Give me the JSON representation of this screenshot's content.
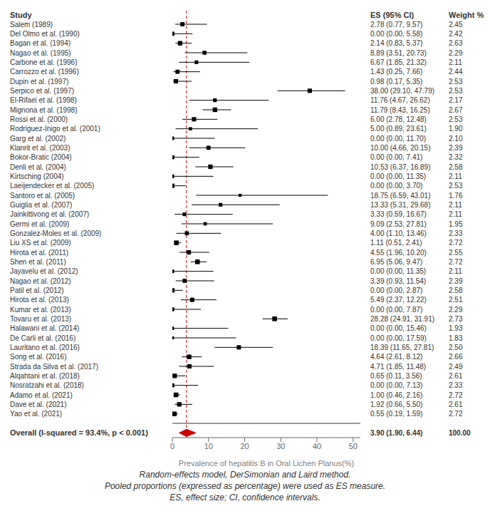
{
  "chart_data": {
    "type": "forest",
    "column_labels": [
      "Study",
      "ES (95% CI)",
      "Weight %"
    ],
    "categories": [
      "Salem (1989)",
      "Del Olmo et al. (1990)",
      "Bagan et al. (1994)",
      "Nagao et al. (1995)",
      "Carbone et al. (1996)",
      "Carrozzo et al. (1996)",
      "Dupin et al. (1997)",
      "Serpico et al. (1997)",
      "El-Rifaei et al. (1998)",
      "Mignona et al. (1998)",
      "Rossi et al. (2000)",
      "Rodriguez-Inigo et al. (2001)",
      "Garg et al. (2002)",
      "Klanrit et al. (2003)",
      "Bokor-Bratic (2004)",
      "Denli et al. (2004)",
      "Kirtsching (2004)",
      "Laeijendecker et al. (2005)",
      "Santoro et al. (2005)",
      "Guiglia et al. (2007)",
      "Jainkittivong et al. (2007)",
      "Germi et al. (2009)",
      "Gonzalez-Moles et al. (2009)",
      "Liu XS et al. (2009)",
      "Hirota et al. (2011)",
      "Shen et al. (2011)",
      "Jayavelu et al. (2012)",
      "Nagao et al. (2012)",
      "Patil et al. (2012)",
      "Hirota et al. (2013)",
      "Kumar et al. (2013)",
      "Tovaru et al. (2013)",
      "Halawani et al. (2014)",
      "De Carli et al. (2016)",
      "Lauritano et al. (2016)",
      "Song et al. (2016)",
      "Strada da Silva et al. (2017)",
      "Alqahtani et al. (2018)",
      "Nosratzahi et al. (2018)",
      "Adamo et al. (2021)",
      "Dave et al. (2021)",
      "Yao et al. (2021)"
    ],
    "values": [
      2.78,
      0.0,
      2.14,
      8.89,
      6.67,
      1.43,
      0.98,
      38.0,
      11.76,
      11.79,
      6.0,
      5.0,
      0.0,
      10.0,
      0.0,
      10.53,
      0.0,
      0.0,
      18.75,
      13.33,
      3.33,
      9.09,
      4.0,
      1.11,
      4.55,
      6.95,
      0.0,
      3.39,
      0.0,
      5.49,
      0.0,
      28.28,
      0.0,
      0.0,
      18.39,
      4.64,
      4.71,
      0.65,
      0.0,
      1.0,
      1.92,
      0.55
    ],
    "ci_lo": [
      0.77,
      0.0,
      0.83,
      3.51,
      1.85,
      0.25,
      0.17,
      29.1,
      4.67,
      8.43,
      2.78,
      0.89,
      0.0,
      4.66,
      0.0,
      6.37,
      0.0,
      0.0,
      6.59,
      5.31,
      0.59,
      2.53,
      1.1,
      0.51,
      1.96,
      5.06,
      0.0,
      0.93,
      0.0,
      2.37,
      0.0,
      24.91,
      0.0,
      0.0,
      11.65,
      2.61,
      1.85,
      0.11,
      0.0,
      0.46,
      0.66,
      0.19
    ],
    "ci_hi": [
      9.57,
      5.58,
      5.37,
      20.73,
      21.32,
      7.66,
      5.35,
      47.79,
      26.62,
      16.25,
      12.48,
      23.61,
      11.7,
      20.15,
      7.41,
      16.89,
      11.35,
      3.7,
      43.01,
      29.68,
      16.67,
      27.81,
      13.46,
      2.41,
      10.2,
      9.47,
      11.35,
      11.54,
      2.87,
      12.22,
      7.87,
      31.91,
      15.46,
      17.59,
      27.81,
      8.12,
      11.48,
      3.56,
      7.13,
      2.16,
      5.5,
      1.59
    ],
    "weights": [
      2.45,
      2.42,
      2.63,
      2.29,
      2.11,
      2.44,
      2.53,
      2.53,
      2.17,
      2.67,
      2.53,
      1.9,
      2.1,
      2.39,
      2.32,
      2.58,
      2.11,
      2.53,
      1.76,
      2.11,
      2.11,
      1.95,
      2.33,
      2.72,
      2.55,
      2.72,
      2.11,
      2.39,
      2.58,
      2.51,
      2.29,
      2.73,
      1.93,
      1.83,
      2.5,
      2.66,
      2.49,
      2.61,
      2.33,
      2.72,
      2.61,
      2.72
    ],
    "value_labels": [
      "2.78 (0.77, 9.57)",
      "0.00 (0.00, 5.58)",
      "2.14 (0.83, 5.37)",
      "8.89 (3.51, 20.73)",
      "6.67 (1.85, 21.32)",
      "1.43 (0.25, 7.66)",
      "0.98 (0.17, 5.35)",
      "38.00 (29.10, 47.79)",
      "11.76 (4.67, 26.62)",
      "11.79 (8.43, 16.25)",
      "6.00 (2.78, 12.48)",
      "5.00 (0.89, 23.61)",
      "0.00 (0.00, 11.70)",
      "10.00 (4.66, 20.15)",
      "0.00 (0.00, 7.41)",
      "10.53 (6.37, 16.89)",
      "0.00 (0.00, 11.35)",
      "0.00 (0.00, 3.70)",
      "18.75 (6.59, 43.01)",
      "13.33 (5.31, 29.68)",
      "3.33 (0.59, 16.67)",
      "9.09 (2.53, 27.81)",
      "4.00 (1.10, 13.46)",
      "1.11 (0.51, 2.41)",
      "4.55 (1.96, 10.20)",
      "6.95 (5.06, 9.47)",
      "0.00 (0.00, 11.35)",
      "3.39 (0.93, 11.54)",
      "0.00 (0.00, 2.87)",
      "5.49 (2.37, 12.22)",
      "0.00 (0.00, 7.87)",
      "28.28 (24.91, 31.91)",
      "0.00 (0.00, 15.46)",
      "0.00 (0.00, 17.59)",
      "18.39 (11.65, 27.81)",
      "4.64 (2.61, 8.12)",
      "4.71 (1.85, 11.48)",
      "0.65 (0.11, 3.56)",
      "0.00 (0.00, 7.13)",
      "1.00 (0.46, 2.16)",
      "1.92 (0.66, 5.50)",
      "0.55 (0.19, 1.59)"
    ],
    "weight_labels": [
      "2.45",
      "2.42",
      "2.63",
      "2.29",
      "2.11",
      "2.44",
      "2.53",
      "2.53",
      "2.17",
      "2.67",
      "2.53",
      "1.90",
      "2.10",
      "2.39",
      "2.32",
      "2.58",
      "2.11",
      "2.53",
      "1.76",
      "2.11",
      "2.11",
      "1.95",
      "2.33",
      "2.72",
      "2.55",
      "2.72",
      "2.11",
      "2.39",
      "2.58",
      "2.51",
      "2.29",
      "2.73",
      "1.93",
      "1.83",
      "2.50",
      "2.66",
      "2.49",
      "2.61",
      "2.33",
      "2.72",
      "2.61",
      "2.72"
    ],
    "color": "#000000",
    "overall": {
      "label": "Overall  (I-squared = 93.4%, p < 0.001)",
      "value": 3.9,
      "ci_lo": 1.9,
      "ci_hi": 6.44,
      "weight": 100.0,
      "value_label": "3.90 (1.90, 6.44)",
      "weight_label": "100.00",
      "color": "#cc0000"
    },
    "reference_line": {
      "value": 3.9,
      "color": "#cc0000",
      "line_style": "dashed"
    },
    "x_label": "Prevalence of hepatitis B in Oral Lichen Planus(%)",
    "xlim": [
      0,
      52
    ],
    "xticks": [
      0,
      10,
      20,
      30,
      40,
      50
    ],
    "annotations": [
      "Random-effects model, DerSimonian and Laird method.",
      "Pooled proportions (expressed as percentage) were used as ES measure.",
      "ES, effect size; CI, confidence intervals."
    ]
  }
}
